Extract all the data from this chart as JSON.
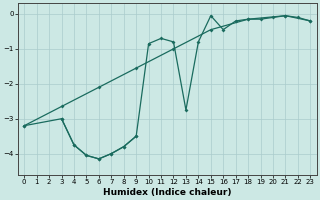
{
  "bg_color": "#cce8e4",
  "line_color": "#1a6b5e",
  "grid_color": "#aacccc",
  "xlabel": "Humidex (Indice chaleur)",
  "xlim": [
    -0.5,
    23.5
  ],
  "ylim": [
    -4.6,
    0.3
  ],
  "yticks": [
    0,
    -1,
    -2,
    -3,
    -4
  ],
  "xticks": [
    0,
    1,
    2,
    3,
    4,
    5,
    6,
    7,
    8,
    9,
    10,
    11,
    12,
    13,
    14,
    15,
    16,
    17,
    18,
    19,
    20,
    21,
    22,
    23
  ],
  "line_straight_x": [
    0,
    3,
    6,
    9,
    12,
    15,
    18,
    21,
    23
  ],
  "line_straight_y": [
    -3.2,
    -2.65,
    -2.1,
    -1.55,
    -1.0,
    -0.45,
    -0.15,
    -0.05,
    -0.2
  ],
  "line_jagged_x": [
    0,
    3,
    4,
    5,
    6,
    7,
    8,
    9,
    10,
    11,
    12,
    13,
    14,
    15,
    16,
    17,
    18,
    19,
    20,
    21,
    22,
    23
  ],
  "line_jagged_y": [
    -3.2,
    -3.0,
    -3.75,
    -4.05,
    -4.15,
    -4.0,
    -3.8,
    -3.5,
    -0.85,
    -0.7,
    -0.8,
    -2.75,
    -0.8,
    -0.05,
    -0.45,
    -0.2,
    -0.15,
    -0.15,
    -0.1,
    -0.05,
    -0.1,
    -0.2
  ],
  "line_bottom_x": [
    3,
    4,
    5,
    6,
    7,
    8,
    9
  ],
  "line_bottom_y": [
    -3.0,
    -3.75,
    -4.05,
    -4.15,
    -4.0,
    -3.8,
    -3.5
  ]
}
